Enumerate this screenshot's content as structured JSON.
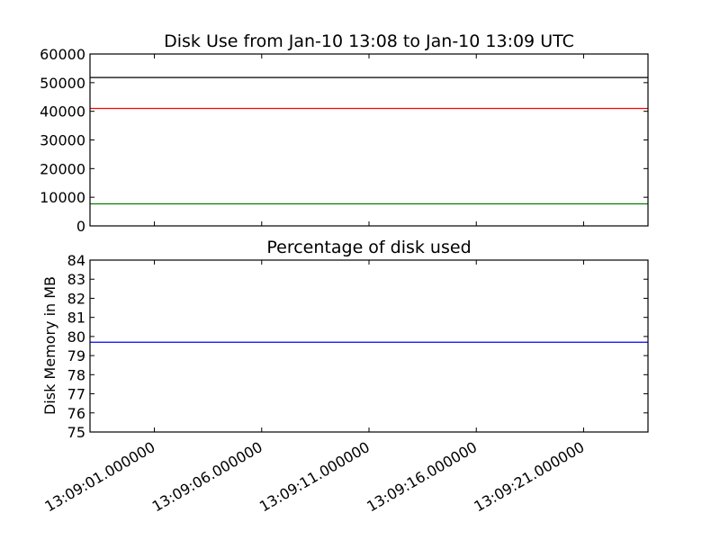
{
  "chart_data": [
    {
      "type": "line",
      "title": "Disk Use from Jan-10 13:08 to Jan-10 13:09 UTC",
      "xlabel": "",
      "ylabel": "",
      "ylim": [
        0,
        60000
      ],
      "yticks": [
        0,
        10000,
        20000,
        30000,
        40000,
        50000,
        60000
      ],
      "xlim": [
        "13:08:58",
        "13:09:24"
      ],
      "x_tick_values": [
        "13:09:01",
        "13:09:06",
        "13:09:11",
        "13:09:16",
        "13:09:21"
      ],
      "x_tick_labels_visible": false,
      "grid": false,
      "series": [
        {
          "color": "#000000",
          "x": [
            "13:08:58",
            "13:09:24"
          ],
          "values": [
            51800,
            51800
          ]
        },
        {
          "color": "#ff0000",
          "x": [
            "13:08:58",
            "13:09:24"
          ],
          "values": [
            41000,
            41000
          ]
        },
        {
          "color": "#008000",
          "x": [
            "13:08:58",
            "13:09:24"
          ],
          "values": [
            7700,
            7700
          ]
        }
      ]
    },
    {
      "type": "line",
      "title": "Percentage of disk used",
      "xlabel": "",
      "ylabel": "Disk Memory in MB",
      "ylim": [
        75,
        84
      ],
      "yticks": [
        75,
        76,
        77,
        78,
        79,
        80,
        81,
        82,
        83,
        84
      ],
      "xlim": [
        "13:08:58",
        "13:09:24"
      ],
      "x_tick_values": [
        "13:09:01",
        "13:09:06",
        "13:09:11",
        "13:09:16",
        "13:09:21"
      ],
      "x_tick_labels": [
        "13:09:01.000000",
        "13:09:06.000000",
        "13:09:11.000000",
        "13:09:16.000000",
        "13:09:21.000000"
      ],
      "x_tick_labels_visible": true,
      "grid": false,
      "series": [
        {
          "color": "#0000ff",
          "x": [
            "13:08:58",
            "13:09:24"
          ],
          "values": [
            79.7,
            79.7
          ]
        }
      ]
    }
  ]
}
